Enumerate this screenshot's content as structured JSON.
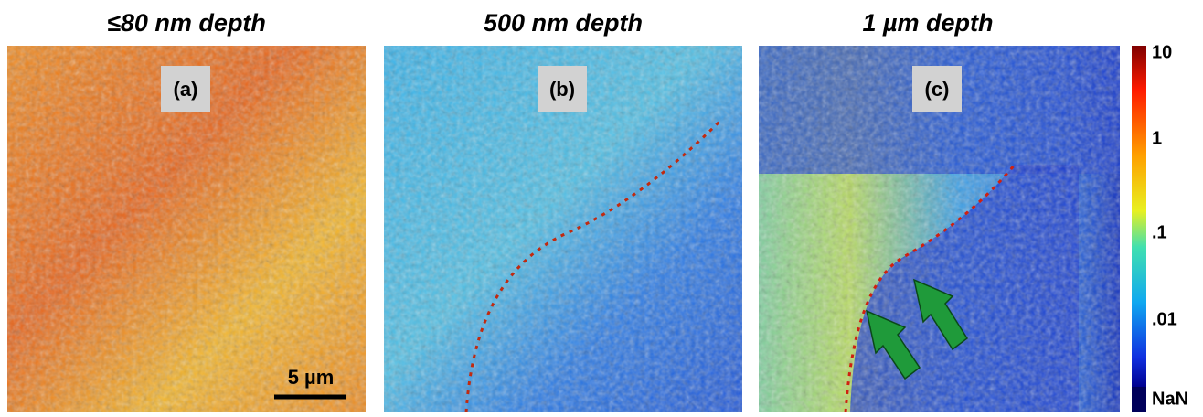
{
  "panels": [
    {
      "title": "≤80 nm depth",
      "label": "(a)"
    },
    {
      "title": "500 nm depth",
      "label": "(b)"
    },
    {
      "title": "1 µm depth",
      "label": "(c)"
    }
  ],
  "scale_bar": "5 µm",
  "colorbar": {
    "ticks": [
      "10",
      "1",
      ".1",
      ".01",
      "NaN"
    ]
  }
}
